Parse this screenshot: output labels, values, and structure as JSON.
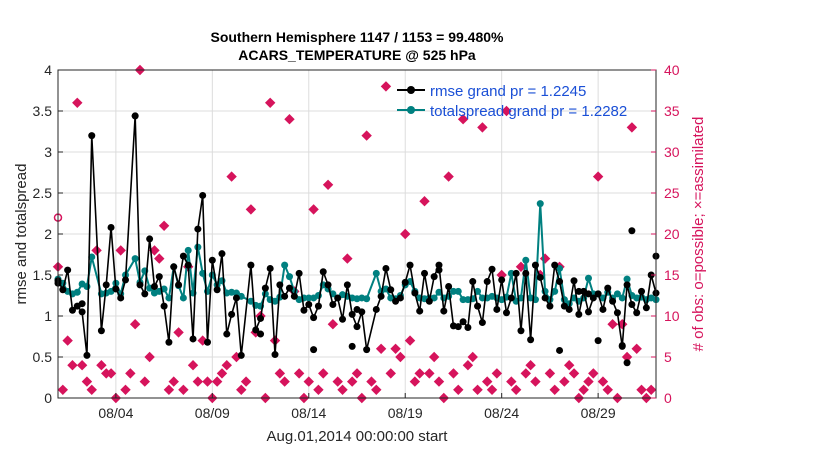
{
  "chart_data": {
    "type": "line",
    "title": "Southern Hemisphere 1147 / 1153 = 99.480%",
    "subtitle": "ACARS_TEMPERATURE @ 525 hPa",
    "xlabel": "Aug.01,2014 00:00:00 start",
    "ylabel_left": "rmse and totalspread",
    "ylabel_right": "# of obs: o=possible; ×=assimilated",
    "x_tick_labels": [
      "08/04",
      "08/09",
      "08/14",
      "08/19",
      "08/24",
      "08/29"
    ],
    "x_tick_days": [
      3,
      8,
      13,
      18,
      23,
      28
    ],
    "xlim_days": [
      0,
      31
    ],
    "ylim_left": [
      0,
      4
    ],
    "y_ticks_left": [
      "0",
      "0.5",
      "1",
      "1.5",
      "2",
      "2.5",
      "3",
      "3.5",
      "4"
    ],
    "ylim_right": [
      0,
      40
    ],
    "y_ticks_right": [
      "0",
      "5",
      "10",
      "15",
      "20",
      "25",
      "30",
      "35",
      "40"
    ],
    "colors": {
      "rmse": "#000000",
      "spread": "#008080",
      "obs": "#d6145c",
      "legend_text": "#1a4fd6"
    },
    "legend": [
      {
        "label": "rmse grand pr = 1.2245",
        "series": "rmse"
      },
      {
        "label": "totalspread grand pr = 1.2282",
        "series": "spread"
      }
    ],
    "rmse": [
      [
        0.0,
        1.43
      ],
      [
        0.25,
        1.32
      ],
      [
        0.5,
        1.56
      ],
      [
        0.75,
        1.07
      ],
      [
        1.0,
        1.12
      ],
      [
        1.25,
        1.05
      ],
      [
        1.5,
        0.52
      ],
      [
        1.75,
        3.2
      ],
      [
        2.25,
        0.82
      ],
      [
        2.5,
        1.38
      ],
      [
        2.75,
        2.08
      ],
      [
        3.0,
        1.33
      ],
      [
        3.25,
        1.22
      ],
      [
        3.5,
        1.44
      ],
      [
        4.0,
        3.44
      ],
      [
        4.25,
        1.38
      ],
      [
        4.5,
        1.27
      ],
      [
        4.75,
        1.94
      ],
      [
        5.0,
        1.36
      ],
      [
        5.25,
        1.48
      ],
      [
        5.5,
        1.12
      ],
      [
        5.75,
        0.68
      ],
      [
        6.0,
        1.6
      ],
      [
        6.25,
        1.38
      ],
      [
        6.5,
        1.73
      ],
      [
        6.75,
        1.62
      ],
      [
        7.0,
        0.72
      ],
      [
        7.25,
        2.06
      ],
      [
        7.5,
        2.47
      ],
      [
        7.75,
        0.68
      ],
      [
        8.0,
        1.68
      ],
      [
        8.25,
        1.32
      ],
      [
        8.5,
        1.76
      ],
      [
        8.75,
        0.78
      ],
      [
        9.0,
        1.02
      ],
      [
        9.25,
        1.22
      ],
      [
        9.5,
        0.52
      ],
      [
        10.0,
        1.62
      ],
      [
        10.25,
        0.83
      ],
      [
        10.5,
        0.97
      ],
      [
        10.75,
        1.34
      ],
      [
        11.0,
        1.58
      ],
      [
        11.25,
        0.53
      ],
      [
        11.5,
        1.38
      ],
      [
        11.75,
        1.24
      ],
      [
        12.0,
        1.34
      ],
      [
        12.25,
        1.24
      ],
      [
        12.5,
        1.52
      ],
      [
        12.75,
        1.07
      ],
      [
        13.0,
        1.14
      ],
      [
        13.25,
        0.98
      ],
      [
        13.5,
        1.12
      ],
      [
        13.75,
        1.54
      ],
      [
        14.0,
        1.38
      ],
      [
        14.25,
        1.14
      ],
      [
        14.5,
        1.22
      ],
      [
        14.75,
        0.96
      ],
      [
        15.0,
        1.38
      ],
      [
        15.25,
        1.02
      ],
      [
        15.5,
        0.87
      ],
      [
        15.75,
        1.05
      ],
      [
        16.0,
        0.59
      ],
      [
        16.5,
        1.08
      ],
      [
        16.75,
        1.24
      ],
      [
        17.0,
        1.58
      ],
      [
        17.25,
        1.32
      ],
      [
        17.5,
        1.18
      ],
      [
        17.75,
        1.22
      ],
      [
        18.0,
        1.41
      ],
      [
        18.25,
        1.62
      ],
      [
        18.5,
        1.28
      ],
      [
        18.75,
        1.06
      ],
      [
        19.0,
        1.52
      ],
      [
        19.25,
        1.18
      ],
      [
        19.5,
        1.48
      ],
      [
        19.75,
        1.62
      ],
      [
        20.0,
        1.06
      ],
      [
        20.25,
        1.36
      ],
      [
        20.5,
        0.88
      ],
      [
        20.75,
        0.87
      ],
      [
        21.0,
        0.93
      ],
      [
        21.25,
        0.86
      ],
      [
        21.5,
        1.42
      ],
      [
        21.75,
        1.12
      ],
      [
        22.0,
        0.92
      ],
      [
        22.25,
        1.42
      ],
      [
        22.5,
        1.57
      ],
      [
        22.75,
        1.08
      ],
      [
        23.0,
        1.44
      ],
      [
        23.25,
        1.04
      ],
      [
        23.5,
        1.22
      ],
      [
        23.75,
        1.52
      ],
      [
        24.0,
        0.82
      ],
      [
        24.25,
        1.52
      ],
      [
        24.5,
        0.71
      ],
      [
        24.75,
        1.62
      ],
      [
        25.0,
        1.47
      ],
      [
        25.25,
        1.22
      ],
      [
        25.5,
        1.12
      ],
      [
        25.75,
        1.62
      ],
      [
        26.0,
        1.42
      ],
      [
        26.25,
        1.12
      ],
      [
        26.5,
        1.08
      ],
      [
        26.75,
        1.43
      ],
      [
        27.0,
        1.02
      ],
      [
        27.25,
        1.3
      ],
      [
        27.5,
        1.05
      ],
      [
        27.75,
        1.22
      ],
      [
        28.0,
        1.27
      ],
      [
        28.25,
        1.08
      ],
      [
        28.5,
        1.34
      ],
      [
        28.75,
        1.18
      ],
      [
        29.0,
        1.04
      ],
      [
        29.25,
        0.63
      ],
      [
        29.5,
        1.38
      ],
      [
        29.75,
        1.14
      ],
      [
        30.0,
        1.04
      ],
      [
        30.25,
        1.3
      ],
      [
        30.5,
        1.1
      ],
      [
        30.75,
        1.5
      ],
      [
        31.0,
        1.28
      ]
    ],
    "totalspread": [
      [
        0.0,
        1.45
      ],
      [
        0.25,
        1.4
      ],
      [
        0.5,
        1.3
      ],
      [
        0.75,
        1.27
      ],
      [
        1.0,
        1.29
      ],
      [
        1.25,
        1.39
      ],
      [
        1.5,
        1.36
      ],
      [
        1.75,
        1.72
      ],
      [
        2.25,
        1.27
      ],
      [
        2.5,
        1.28
      ],
      [
        2.75,
        1.3
      ],
      [
        3.0,
        1.4
      ],
      [
        3.25,
        1.27
      ],
      [
        3.5,
        1.5
      ],
      [
        4.0,
        1.7
      ],
      [
        4.25,
        1.41
      ],
      [
        4.5,
        1.55
      ],
      [
        4.75,
        1.34
      ],
      [
        5.0,
        1.28
      ],
      [
        5.25,
        1.3
      ],
      [
        5.5,
        1.33
      ],
      [
        5.75,
        1.22
      ],
      [
        6.0,
        1.6
      ],
      [
        6.25,
        1.37
      ],
      [
        6.5,
        1.22
      ],
      [
        6.75,
        1.8
      ],
      [
        7.0,
        1.28
      ],
      [
        7.25,
        1.84
      ],
      [
        7.5,
        1.52
      ],
      [
        7.75,
        1.3
      ],
      [
        8.0,
        1.5
      ],
      [
        8.25,
        1.38
      ],
      [
        8.5,
        1.43
      ],
      [
        8.75,
        1.28
      ],
      [
        9.0,
        1.29
      ],
      [
        9.25,
        1.28
      ],
      [
        9.5,
        1.24
      ],
      [
        10.0,
        1.18
      ],
      [
        10.25,
        1.13
      ],
      [
        10.5,
        1.12
      ],
      [
        10.75,
        1.27
      ],
      [
        11.0,
        1.2
      ],
      [
        11.25,
        1.18
      ],
      [
        11.5,
        1.23
      ],
      [
        11.75,
        1.62
      ],
      [
        12.0,
        1.48
      ],
      [
        12.25,
        1.3
      ],
      [
        12.5,
        1.2
      ],
      [
        12.75,
        1.22
      ],
      [
        13.0,
        1.22
      ],
      [
        13.25,
        1.22
      ],
      [
        13.5,
        1.25
      ],
      [
        13.75,
        1.38
      ],
      [
        14.0,
        1.33
      ],
      [
        14.25,
        1.27
      ],
      [
        14.5,
        1.22
      ],
      [
        14.75,
        1.26
      ],
      [
        15.0,
        1.24
      ],
      [
        15.25,
        1.22
      ],
      [
        15.5,
        1.21
      ],
      [
        15.75,
        1.22
      ],
      [
        16.0,
        1.21
      ],
      [
        16.5,
        1.52
      ],
      [
        16.75,
        1.3
      ],
      [
        17.0,
        1.33
      ],
      [
        17.25,
        1.22
      ],
      [
        17.5,
        1.21
      ],
      [
        17.75,
        1.25
      ],
      [
        18.0,
        1.38
      ],
      [
        18.25,
        1.42
      ],
      [
        18.5,
        1.3
      ],
      [
        18.75,
        1.22
      ],
      [
        19.0,
        1.21
      ],
      [
        19.25,
        1.22
      ],
      [
        19.5,
        1.22
      ],
      [
        19.75,
        1.29
      ],
      [
        20.0,
        1.22
      ],
      [
        20.25,
        1.24
      ],
      [
        20.5,
        1.3
      ],
      [
        20.75,
        1.3
      ],
      [
        21.0,
        1.2
      ],
      [
        21.25,
        1.2
      ],
      [
        21.5,
        1.21
      ],
      [
        21.75,
        1.3
      ],
      [
        22.0,
        1.22
      ],
      [
        22.25,
        1.22
      ],
      [
        22.5,
        1.24
      ],
      [
        22.75,
        1.22
      ],
      [
        23.0,
        1.2
      ],
      [
        23.25,
        1.23
      ],
      [
        23.5,
        1.52
      ],
      [
        23.75,
        1.18
      ],
      [
        24.0,
        1.22
      ],
      [
        24.25,
        1.68
      ],
      [
        24.5,
        1.22
      ],
      [
        24.75,
        1.2
      ],
      [
        25.0,
        2.37
      ],
      [
        25.25,
        1.3
      ],
      [
        25.5,
        1.2
      ],
      [
        25.75,
        1.3
      ],
      [
        26.0,
        1.58
      ],
      [
        26.25,
        1.2
      ],
      [
        26.5,
        1.15
      ],
      [
        26.75,
        1.22
      ],
      [
        27.0,
        1.18
      ],
      [
        27.25,
        1.22
      ],
      [
        27.5,
        1.46
      ],
      [
        27.75,
        1.27
      ],
      [
        28.0,
        1.27
      ],
      [
        28.25,
        1.22
      ],
      [
        28.5,
        1.29
      ],
      [
        28.75,
        1.22
      ],
      [
        29.0,
        1.27
      ],
      [
        29.25,
        1.22
      ],
      [
        29.5,
        1.45
      ],
      [
        29.75,
        1.25
      ],
      [
        30.0,
        1.22
      ],
      [
        30.25,
        1.23
      ],
      [
        30.5,
        1.2
      ],
      [
        30.75,
        1.22
      ],
      [
        31.0,
        1.2
      ]
    ],
    "rmse_isolated": [
      [
        0.0,
        1.4
      ],
      [
        1.25,
        1.15
      ],
      [
        4.0,
        3.44
      ],
      [
        10.5,
        0.78
      ],
      [
        13.25,
        0.59
      ],
      [
        15.25,
        0.63
      ],
      [
        15.5,
        1.08
      ],
      [
        19.75,
        1.56
      ],
      [
        26.0,
        0.58
      ],
      [
        27.0,
        1.3
      ],
      [
        27.5,
        1.27
      ],
      [
        28.0,
        0.7
      ],
      [
        29.25,
        0.64
      ],
      [
        29.75,
        2.04
      ],
      [
        29.5,
        0.43
      ],
      [
        31.0,
        1.73
      ]
    ],
    "obs_assimilated": [
      [
        0.0,
        16
      ],
      [
        0.25,
        1
      ],
      [
        0.5,
        7
      ],
      [
        0.75,
        4
      ],
      [
        1.0,
        36
      ],
      [
        1.25,
        4
      ],
      [
        1.5,
        2
      ],
      [
        1.75,
        1
      ],
      [
        2.0,
        18
      ],
      [
        2.25,
        4
      ],
      [
        2.5,
        3
      ],
      [
        2.75,
        3
      ],
      [
        3.0,
        0
      ],
      [
        3.25,
        18
      ],
      [
        3.5,
        1
      ],
      [
        3.75,
        3
      ],
      [
        4.0,
        9
      ],
      [
        4.25,
        40
      ],
      [
        4.5,
        2
      ],
      [
        4.75,
        5
      ],
      [
        5.0,
        18
      ],
      [
        5.25,
        17
      ],
      [
        5.5,
        21
      ],
      [
        5.75,
        1
      ],
      [
        6.0,
        2
      ],
      [
        6.25,
        8
      ],
      [
        6.5,
        1
      ],
      [
        6.75,
        16
      ],
      [
        7.0,
        4
      ],
      [
        7.25,
        2
      ],
      [
        7.5,
        7
      ],
      [
        7.75,
        2
      ],
      [
        8.0,
        0
      ],
      [
        8.25,
        2
      ],
      [
        8.5,
        3
      ],
      [
        8.75,
        4
      ],
      [
        9.0,
        27
      ],
      [
        9.25,
        5
      ],
      [
        9.5,
        1
      ],
      [
        9.75,
        2
      ],
      [
        10.0,
        23
      ],
      [
        10.25,
        8
      ],
      [
        10.5,
        10
      ],
      [
        10.75,
        0
      ],
      [
        11.0,
        36
      ],
      [
        11.25,
        7
      ],
      [
        11.5,
        3
      ],
      [
        11.75,
        2
      ],
      [
        12.0,
        34
      ],
      [
        12.25,
        13
      ],
      [
        12.5,
        3
      ],
      [
        12.75,
        0
      ],
      [
        13.0,
        2
      ],
      [
        13.25,
        23
      ],
      [
        13.5,
        1
      ],
      [
        13.75,
        3
      ],
      [
        14.0,
        26
      ],
      [
        14.25,
        9
      ],
      [
        14.5,
        2
      ],
      [
        14.75,
        1
      ],
      [
        15.0,
        17
      ],
      [
        15.25,
        2
      ],
      [
        15.5,
        3
      ],
      [
        15.75,
        0
      ],
      [
        16.0,
        32
      ],
      [
        16.25,
        2
      ],
      [
        16.5,
        1
      ],
      [
        16.75,
        6
      ],
      [
        17.0,
        38
      ],
      [
        17.25,
        3
      ],
      [
        17.5,
        6
      ],
      [
        17.75,
        5
      ],
      [
        18.0,
        20
      ],
      [
        18.25,
        7
      ],
      [
        18.5,
        2
      ],
      [
        18.75,
        3
      ],
      [
        19.0,
        24
      ],
      [
        19.25,
        3
      ],
      [
        19.5,
        5
      ],
      [
        19.75,
        2
      ],
      [
        20.0,
        0
      ],
      [
        20.25,
        27
      ],
      [
        20.5,
        3
      ],
      [
        20.75,
        1
      ],
      [
        21.0,
        34
      ],
      [
        21.25,
        4
      ],
      [
        21.5,
        5
      ],
      [
        21.75,
        1
      ],
      [
        22.0,
        33
      ],
      [
        22.25,
        2
      ],
      [
        22.5,
        1
      ],
      [
        22.75,
        3
      ],
      [
        23.0,
        15
      ],
      [
        23.25,
        35
      ],
      [
        23.5,
        2
      ],
      [
        23.75,
        1
      ],
      [
        24.0,
        16
      ],
      [
        24.25,
        3
      ],
      [
        24.5,
        4
      ],
      [
        24.75,
        2
      ],
      [
        25.0,
        15
      ],
      [
        25.25,
        17
      ],
      [
        25.5,
        3
      ],
      [
        25.75,
        1
      ],
      [
        26.0,
        16
      ],
      [
        26.25,
        2
      ],
      [
        26.5,
        4
      ],
      [
        26.75,
        3
      ],
      [
        27.0,
        0
      ],
      [
        27.25,
        1
      ],
      [
        27.5,
        2
      ],
      [
        27.75,
        3
      ],
      [
        28.0,
        27
      ],
      [
        28.25,
        2
      ],
      [
        28.5,
        1
      ],
      [
        28.75,
        9
      ],
      [
        29.0,
        0
      ],
      [
        29.25,
        9
      ],
      [
        29.5,
        5
      ],
      [
        29.75,
        33
      ],
      [
        30.0,
        6
      ],
      [
        30.25,
        1
      ],
      [
        30.5,
        0
      ],
      [
        30.75,
        1
      ]
    ],
    "obs_possible": [
      [
        0.0,
        22
      ]
    ]
  }
}
